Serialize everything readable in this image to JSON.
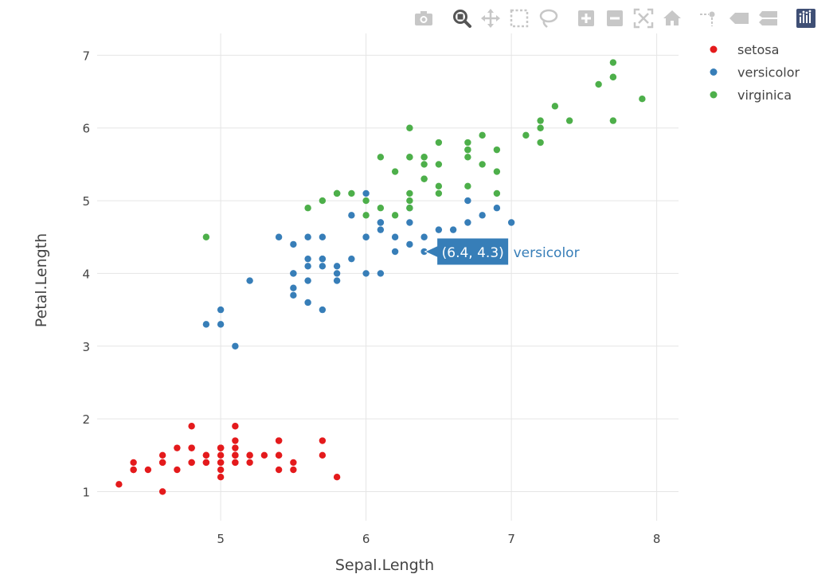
{
  "modebar": {
    "buttons": [
      {
        "name": "camera-icon",
        "active": false
      },
      {
        "name": "zoom-icon",
        "active": true
      },
      {
        "name": "pan-icon",
        "active": false
      },
      {
        "name": "box-select-icon",
        "active": false
      },
      {
        "name": "lasso-select-icon",
        "active": false
      },
      {
        "name": "zoom-in-icon",
        "active": false
      },
      {
        "name": "zoom-out-icon",
        "active": false
      },
      {
        "name": "autoscale-icon",
        "active": false
      },
      {
        "name": "reset-axes-icon",
        "active": false
      },
      {
        "name": "spike-lines-icon",
        "active": false
      },
      {
        "name": "hover-closest-icon",
        "active": false
      },
      {
        "name": "hover-compare-icon",
        "active": false
      },
      {
        "name": "plotly-logo-icon",
        "active": false
      }
    ]
  },
  "colors": {
    "setosa": "#e41a1c",
    "versicolor": "#377eb8",
    "virginica": "#4daf4a",
    "grid": "#e5e5e5",
    "text": "#444444",
    "modebar_icon": "#c7c7c7",
    "modebar_active": "#555555",
    "logo": "#3f4f75"
  },
  "hover": {
    "x": 6.4,
    "y": 4.3,
    "text": "(6.4, 4.3)",
    "series": "versicolor"
  },
  "chart_data": {
    "type": "scatter",
    "title": "",
    "xlabel": "Sepal.Length",
    "ylabel": "Petal.Length",
    "xlim": [
      4.15,
      8.15
    ],
    "ylim": [
      0.6,
      7.3
    ],
    "xticks": [
      5,
      6,
      7,
      8
    ],
    "yticks": [
      1,
      2,
      3,
      4,
      5,
      6,
      7
    ],
    "grid": true,
    "legend_position": "top-right",
    "series": [
      {
        "name": "setosa",
        "x": [
          5.1,
          4.9,
          4.7,
          4.6,
          5.0,
          5.4,
          4.6,
          5.0,
          4.4,
          4.9,
          5.4,
          4.8,
          4.8,
          4.3,
          5.8,
          5.7,
          5.4,
          5.1,
          5.7,
          5.1,
          5.4,
          5.1,
          4.6,
          5.1,
          4.8,
          5.0,
          5.0,
          5.2,
          5.2,
          4.7,
          4.8,
          5.4,
          5.2,
          5.5,
          4.9,
          5.0,
          5.5,
          4.9,
          4.4,
          5.1,
          5.0,
          4.5,
          4.4,
          5.0,
          5.1,
          4.8,
          5.1,
          4.6,
          5.3,
          5.0
        ],
        "y": [
          1.4,
          1.4,
          1.3,
          1.5,
          1.4,
          1.7,
          1.4,
          1.5,
          1.4,
          1.5,
          1.5,
          1.6,
          1.4,
          1.1,
          1.2,
          1.5,
          1.3,
          1.4,
          1.7,
          1.5,
          1.7,
          1.5,
          1.0,
          1.7,
          1.9,
          1.6,
          1.6,
          1.5,
          1.4,
          1.6,
          1.6,
          1.5,
          1.5,
          1.4,
          1.5,
          1.2,
          1.3,
          1.4,
          1.3,
          1.5,
          1.3,
          1.3,
          1.3,
          1.6,
          1.9,
          1.4,
          1.6,
          1.4,
          1.5,
          1.4
        ]
      },
      {
        "name": "versicolor",
        "x": [
          7.0,
          6.4,
          6.9,
          5.5,
          6.5,
          5.7,
          6.3,
          4.9,
          6.6,
          5.2,
          5.0,
          5.9,
          6.0,
          6.1,
          5.6,
          6.7,
          5.6,
          5.8,
          6.2,
          5.6,
          5.9,
          6.1,
          6.3,
          6.1,
          6.4,
          6.6,
          6.8,
          6.7,
          6.0,
          5.7,
          5.5,
          5.5,
          5.8,
          6.0,
          5.4,
          6.0,
          6.7,
          6.3,
          5.6,
          5.5,
          5.5,
          6.1,
          5.8,
          5.0,
          5.6,
          5.7,
          5.7,
          6.2,
          5.1,
          5.7
        ],
        "y": [
          4.7,
          4.5,
          4.9,
          4.0,
          4.6,
          4.5,
          4.7,
          3.3,
          4.6,
          3.9,
          3.5,
          4.2,
          4.0,
          4.7,
          3.6,
          4.4,
          4.5,
          4.1,
          4.5,
          3.9,
          4.8,
          4.0,
          4.9,
          4.7,
          4.3,
          4.4,
          4.8,
          5.0,
          4.5,
          3.5,
          3.8,
          3.7,
          3.9,
          5.1,
          4.5,
          4.5,
          4.7,
          4.4,
          4.1,
          4.0,
          4.4,
          4.6,
          4.0,
          3.3,
          4.2,
          4.2,
          4.2,
          4.3,
          3.0,
          4.1
        ]
      },
      {
        "name": "virginica",
        "x": [
          6.3,
          5.8,
          7.1,
          6.3,
          6.5,
          7.6,
          4.9,
          7.3,
          6.7,
          7.2,
          6.5,
          6.4,
          6.8,
          5.7,
          5.8,
          6.4,
          6.5,
          7.7,
          7.7,
          6.0,
          6.9,
          5.6,
          7.7,
          6.3,
          6.7,
          7.2,
          6.2,
          6.1,
          6.4,
          7.2,
          7.4,
          7.9,
          6.4,
          6.3,
          6.1,
          7.7,
          6.3,
          6.4,
          6.0,
          6.9,
          6.7,
          6.9,
          5.8,
          6.8,
          6.7,
          6.7,
          6.3,
          6.5,
          6.2,
          5.9
        ],
        "y": [
          6.0,
          5.1,
          5.9,
          5.6,
          5.8,
          6.6,
          4.5,
          6.3,
          5.8,
          6.1,
          5.1,
          5.3,
          5.5,
          5.0,
          5.1,
          5.3,
          5.5,
          6.7,
          6.9,
          5.0,
          5.7,
          4.9,
          6.7,
          4.9,
          5.7,
          6.0,
          4.8,
          4.9,
          5.6,
          5.8,
          6.1,
          6.4,
          5.6,
          5.1,
          5.6,
          6.1,
          5.6,
          5.5,
          4.8,
          5.4,
          5.6,
          5.1,
          5.1,
          5.9,
          5.7,
          5.2,
          5.0,
          5.2,
          5.4,
          5.1
        ]
      }
    ]
  }
}
